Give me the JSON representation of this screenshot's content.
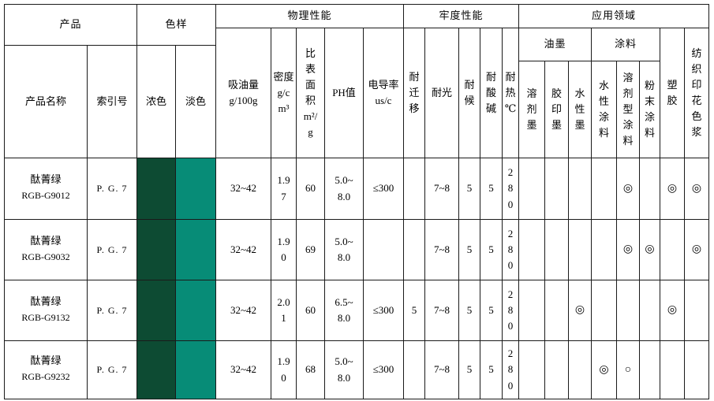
{
  "table": {
    "header": {
      "product_group": "产品",
      "color_sample_group": "色样",
      "physical_group": "物理性能",
      "fastness_group": "牢度性能",
      "application_group": "应用领域",
      "ink_group": "油墨",
      "coating_group": "涂料",
      "product_name": "产品名称",
      "index_no": "索引号",
      "dark_shade": "浓色",
      "light_shade": "淡色",
      "oil_absorption": "吸油量\ng/100g",
      "density": "密度\ng/c\nm³",
      "surface_area": "比\n表\n面\n积\nm²/\ng",
      "ph": "PH值",
      "conductivity": "电导率\nus/c",
      "migration": "耐\n迁\n移",
      "light_fastness": "耐光",
      "weather_fastness": "耐\n候",
      "acid_alkali": "耐\n酸\n碱",
      "heat_c": "耐\n热\n℃",
      "solvent_ink": "溶\n剂\n墨",
      "offset_ink": "胶\n印\n墨",
      "water_ink": "水\n性\n墨",
      "water_coating": "水\n性\n涂\n料",
      "solvent_coating": "溶\n剂\n型\n涂\n料",
      "powder_coating": "粉\n末\n涂\n料",
      "plastic": "塑\n胶",
      "textile_paste": "纺\n织\n印\n花\n色\n浆"
    },
    "swatch_colors": {
      "dark": "#0d4b33",
      "light": "#078c77"
    },
    "rows": [
      {
        "name": "酞菁绿",
        "code": "RGB-G9012",
        "index": "P. G. 7",
        "oil": "32~42",
        "density": "1.9\n7",
        "surface": "60",
        "ph": "5.0~\n8.0",
        "conductivity": "≤300",
        "migration": "",
        "light_fastness": "7~8",
        "weather": "5",
        "acid": "5",
        "heat": "2\n8\n0",
        "apps": [
          "",
          "",
          "",
          "",
          "◎",
          "",
          "◎",
          "◎"
        ]
      },
      {
        "name": "酞菁绿",
        "code": "RGB-G9032",
        "index": "P. G. 7",
        "oil": "32~42",
        "density": "1.9\n0",
        "surface": "69",
        "ph": "5.0~\n8.0",
        "conductivity": "",
        "migration": "",
        "light_fastness": "7~8",
        "weather": "5",
        "acid": "5",
        "heat": "2\n8\n0",
        "apps": [
          "",
          "",
          "",
          "",
          "◎",
          "◎",
          "",
          "◎"
        ]
      },
      {
        "name": "酞菁绿",
        "code": "RGB-G9132",
        "index": "P. G. 7",
        "oil": "32~42",
        "density": "2.0\n1",
        "surface": "60",
        "ph": "6.5~\n8.0",
        "conductivity": "≤300",
        "migration": "5",
        "light_fastness": "7~8",
        "weather": "5",
        "acid": "5",
        "heat": "2\n8\n0",
        "apps": [
          "",
          "",
          "◎",
          "",
          "",
          "",
          "◎",
          ""
        ]
      },
      {
        "name": "酞菁绿",
        "code": "RGB-G9232",
        "index": "P. G. 7",
        "oil": "32~42",
        "density": "1.9\n0",
        "surface": "68",
        "ph": "5.0~\n8.0",
        "conductivity": "≤300",
        "migration": "",
        "light_fastness": "7~8",
        "weather": "5",
        "acid": "5",
        "heat": "2\n8\n0",
        "apps": [
          "",
          "",
          "",
          "◎",
          "○",
          "",
          "",
          ""
        ]
      }
    ]
  }
}
